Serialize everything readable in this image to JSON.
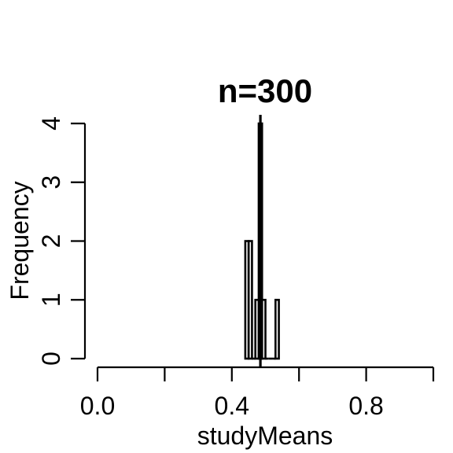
{
  "chart_data": {
    "type": "bar",
    "title": "n=300",
    "xlabel": "studyMeans",
    "ylabel": "Frequency",
    "xlim": [
      0,
      1
    ],
    "ylim": [
      0,
      4
    ],
    "x_tick_values": [
      0,
      0.2,
      0.4,
      0.6,
      0.8,
      1.0
    ],
    "x_tick_labels": [
      "0.0",
      "",
      "0.4",
      "",
      "0.8",
      ""
    ],
    "y_tick_values": [
      0,
      1,
      2,
      3,
      4
    ],
    "y_tick_labels": [
      "0",
      "1",
      "2",
      "3",
      "4"
    ],
    "bins": [
      {
        "x0": 0.44,
        "x1": 0.45,
        "count": 2
      },
      {
        "x0": 0.45,
        "x1": 0.46,
        "count": 2
      },
      {
        "x0": 0.46,
        "x1": 0.47,
        "count": 0
      },
      {
        "x0": 0.47,
        "x1": 0.48,
        "count": 1
      },
      {
        "x0": 0.48,
        "x1": 0.49,
        "count": 4
      },
      {
        "x0": 0.49,
        "x1": 0.5,
        "count": 1
      },
      {
        "x0": 0.5,
        "x1": 0.51,
        "count": 0
      },
      {
        "x0": 0.51,
        "x1": 0.52,
        "count": 0
      },
      {
        "x0": 0.52,
        "x1": 0.53,
        "count": 0
      },
      {
        "x0": 0.53,
        "x1": 0.54,
        "count": 1
      }
    ],
    "reference_line_x": 0.485,
    "grid": false,
    "legend": "none"
  }
}
